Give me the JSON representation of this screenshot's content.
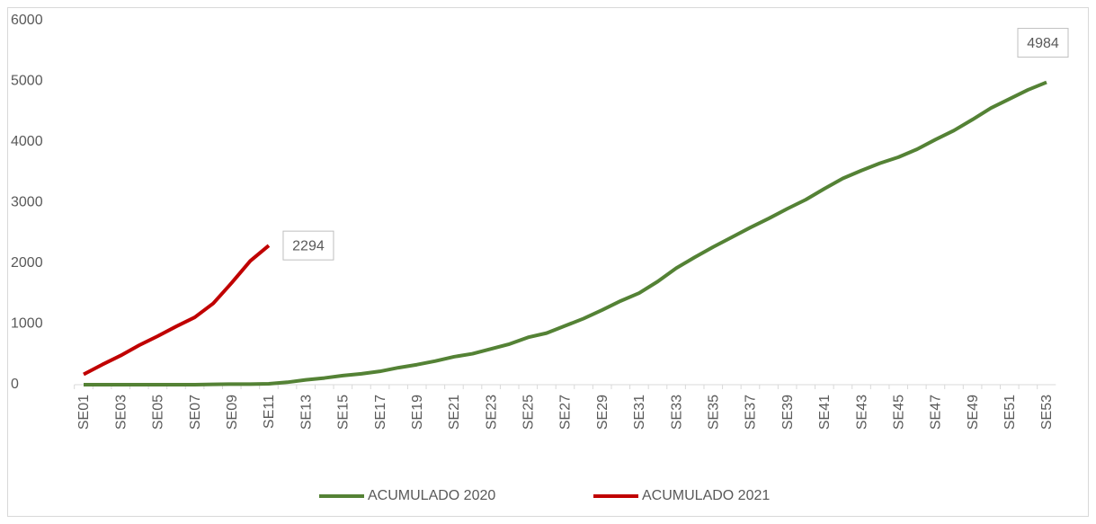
{
  "chart_data": {
    "type": "line",
    "categories": [
      "SE01",
      null,
      "SE03",
      null,
      "SE05",
      null,
      "SE07",
      null,
      "SE09",
      null,
      "SE11",
      null,
      "SE13",
      null,
      "SE15",
      null,
      "SE17",
      null,
      "SE19",
      null,
      "SE21",
      null,
      "SE23",
      null,
      "SE25",
      null,
      "SE27",
      null,
      "SE29",
      null,
      "SE31",
      null,
      "SE33",
      null,
      "SE35",
      null,
      "SE37",
      null,
      "SE39",
      null,
      "SE41",
      null,
      "SE43",
      null,
      "SE45",
      null,
      "SE47",
      null,
      "SE49",
      null,
      "SE51",
      null,
      "SE53"
    ],
    "series": [
      {
        "name": "ACUMULADO 2020",
        "color": "#548235",
        "values": [
          0,
          0,
          0,
          0,
          0,
          0,
          0,
          5,
          10,
          10,
          15,
          40,
          80,
          110,
          150,
          180,
          220,
          280,
          330,
          390,
          460,
          510,
          590,
          670,
          780,
          850,
          970,
          1090,
          1230,
          1380,
          1510,
          1700,
          1920,
          2100,
          2270,
          2430,
          2590,
          2740,
          2900,
          3050,
          3230,
          3400,
          3530,
          3650,
          3750,
          3880,
          4040,
          4190,
          4370,
          4560,
          4710,
          4860,
          4984
        ]
      },
      {
        "name": "ACUMULADO 2021",
        "color": "#c00000",
        "values": [
          170,
          330,
          480,
          650,
          800,
          960,
          1110,
          1340,
          1680,
          2040,
          2294,
          null,
          null,
          null,
          null,
          null,
          null,
          null,
          null,
          null,
          null,
          null,
          null,
          null,
          null,
          null,
          null,
          null,
          null,
          null,
          null,
          null,
          null,
          null,
          null,
          null,
          null,
          null,
          null,
          null,
          null,
          null,
          null,
          null,
          null,
          null,
          null,
          null,
          null,
          null,
          null,
          null,
          null
        ]
      }
    ],
    "ylim": [
      0,
      6000
    ],
    "yticks": [
      0,
      1000,
      2000,
      3000,
      4000,
      5000,
      6000
    ],
    "grid": false,
    "legend": "bottom"
  }
}
